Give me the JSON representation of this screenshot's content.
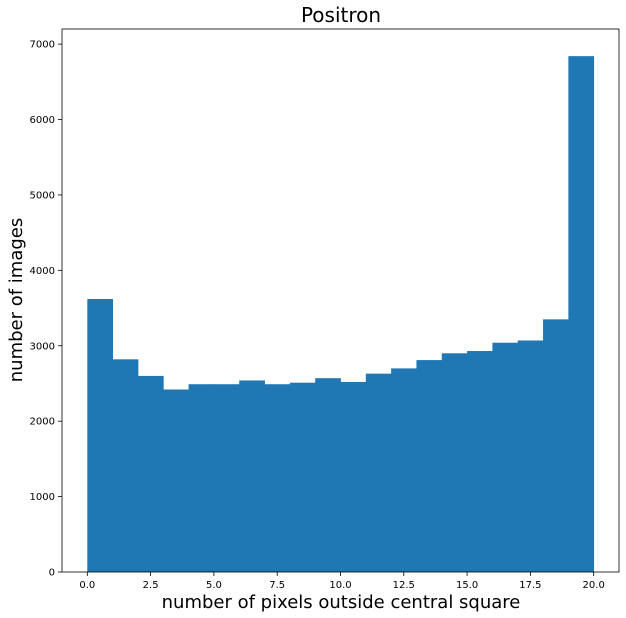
{
  "chart_data": {
    "type": "bar",
    "title": "Positron",
    "xlabel": "number of pixels outside central square",
    "ylabel": "number of images",
    "bin_edges": [
      0,
      1,
      2,
      3,
      4,
      5,
      6,
      7,
      8,
      9,
      10,
      11,
      12,
      13,
      14,
      15,
      16,
      17,
      18,
      19,
      20
    ],
    "values": [
      3620,
      2820,
      2600,
      2420,
      2490,
      2490,
      2540,
      2490,
      2510,
      2570,
      2520,
      2630,
      2700,
      2810,
      2900,
      2930,
      3040,
      3070,
      3350,
      6840
    ],
    "xlim": [
      -1,
      21
    ],
    "ylim": [
      0,
      7200
    ],
    "xticks": [
      0.0,
      2.5,
      5.0,
      7.5,
      10.0,
      12.5,
      15.0,
      17.5,
      20.0
    ],
    "xtick_labels": [
      "0.0",
      "2.5",
      "5.0",
      "7.5",
      "10.0",
      "12.5",
      "15.0",
      "17.5",
      "20.0"
    ],
    "yticks": [
      0,
      1000,
      2000,
      3000,
      4000,
      5000,
      6000,
      7000
    ],
    "ytick_labels": [
      "0",
      "1000",
      "2000",
      "3000",
      "4000",
      "5000",
      "6000",
      "7000"
    ],
    "bar_color": "#1f77b4",
    "grid": false,
    "legend": "none"
  }
}
